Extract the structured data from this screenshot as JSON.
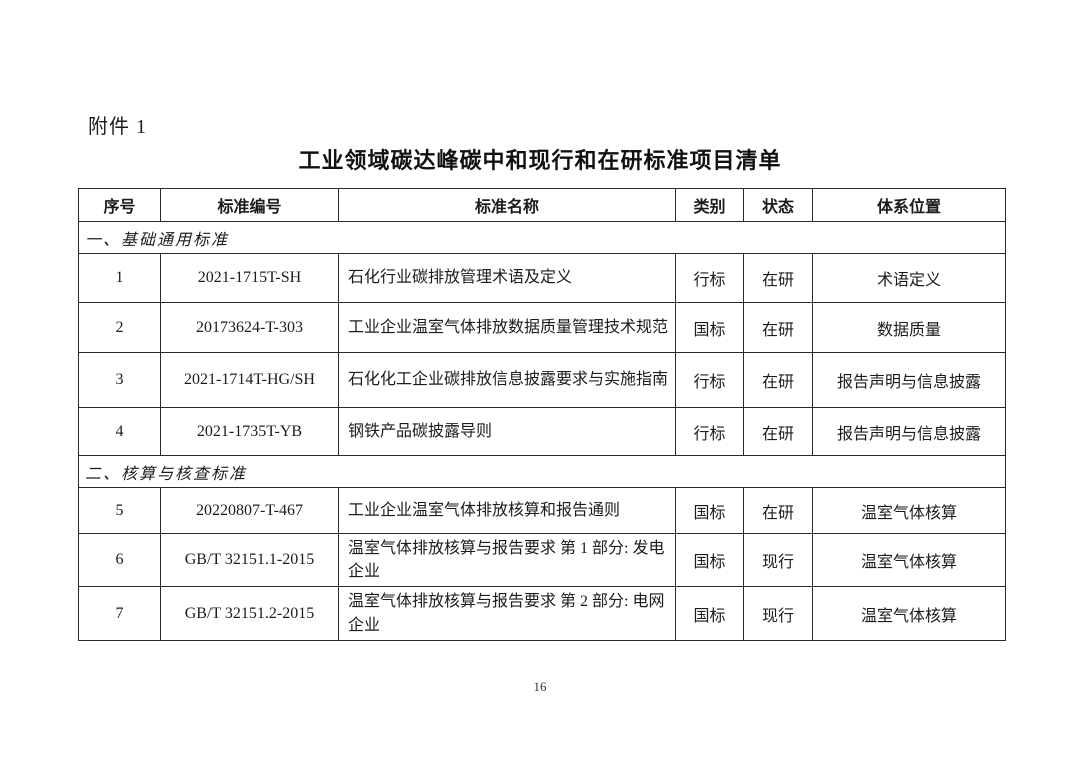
{
  "page": {
    "attachment_label": "附件 1",
    "title": "工业领域碳达峰碳中和现行和在研标准项目清单",
    "page_number": "16"
  },
  "table": {
    "columns": [
      "序号",
      "标准编号",
      "标准名称",
      "类别",
      "状态",
      "体系位置"
    ],
    "section1": {
      "label": "一、基础通用标准"
    },
    "section2": {
      "label": "二、核算与核查标准"
    },
    "rows": [
      {
        "no": "1",
        "code": "2021-1715T-SH",
        "name": "石化行业碳排放管理术语及定义",
        "category": "行标",
        "status": "在研",
        "position": "术语定义"
      },
      {
        "no": "2",
        "code": "20173624-T-303",
        "name": "工业企业温室气体排放数据质量管理技术规范",
        "category": "国标",
        "status": "在研",
        "position": "数据质量"
      },
      {
        "no": "3",
        "code": "2021-1714T-HG/SH",
        "name": "石化化工企业碳排放信息披露要求与实施指南",
        "category": "行标",
        "status": "在研",
        "position": "报告声明与信息披露"
      },
      {
        "no": "4",
        "code": "2021-1735T-YB",
        "name": "钢铁产品碳披露导则",
        "category": "行标",
        "status": "在研",
        "position": "报告声明与信息披露"
      },
      {
        "no": "5",
        "code": "20220807-T-467",
        "name": "工业企业温室气体排放核算和报告通则",
        "category": "国标",
        "status": "在研",
        "position": "温室气体核算"
      },
      {
        "no": "6",
        "code": "GB/T 32151.1-2015",
        "name": "温室气体排放核算与报告要求 第 1 部分: 发电企业",
        "category": "国标",
        "status": "现行",
        "position": "温室气体核算"
      },
      {
        "no": "7",
        "code": "GB/T 32151.2-2015",
        "name": "温室气体排放核算与报告要求 第 2 部分: 电网企业",
        "category": "国标",
        "status": "现行",
        "position": "温室气体核算"
      }
    ]
  }
}
